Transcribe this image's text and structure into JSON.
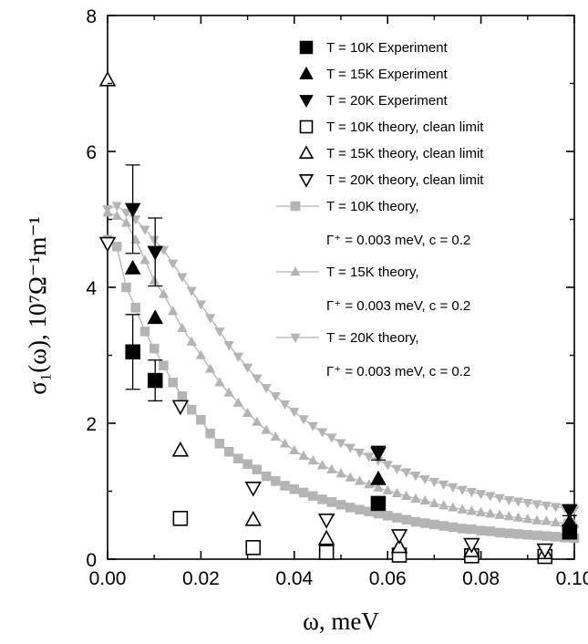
{
  "chart_data": {
    "type": "scatter",
    "xlabel": "ω, meV",
    "ylabel": "σ₁(ω), 10⁷Ω⁻¹m⁻¹",
    "xlim": [
      0.0,
      0.1
    ],
    "ylim": [
      0,
      8
    ],
    "x_ticks": [
      "0.00",
      "0.02",
      "0.04",
      "0.06",
      "0.08",
      "0.10"
    ],
    "y_ticks": [
      "0",
      "2",
      "4",
      "6",
      "8"
    ],
    "grid": false,
    "legend_position": "top-right",
    "series": [
      {
        "name": "T = 10K Experiment",
        "marker": "filled-square",
        "color": "#000000",
        "points": [
          [
            0.0054,
            3.05
          ],
          [
            0.0102,
            2.63
          ],
          [
            0.058,
            0.82
          ],
          [
            0.099,
            0.4
          ]
        ],
        "error": [
          0.55,
          0.3,
          0.06,
          0.05
        ]
      },
      {
        "name": "T = 15K Experiment",
        "marker": "filled-triangle-up",
        "color": "#000000",
        "points": [
          [
            0.0054,
            4.28
          ],
          [
            0.0102,
            3.55
          ],
          [
            0.058,
            1.18
          ],
          [
            0.099,
            0.55
          ]
        ],
        "error": [
          0.0,
          0.0,
          0.0,
          0.0
        ]
      },
      {
        "name": "T = 20K Experiment",
        "marker": "filled-triangle-down",
        "color": "#000000",
        "points": [
          [
            0.0054,
            5.15
          ],
          [
            0.0102,
            4.52
          ],
          [
            0.058,
            1.56
          ],
          [
            0.099,
            0.72
          ]
        ],
        "error": [
          0.65,
          0.5,
          0.1,
          0.08
        ]
      },
      {
        "name": "T = 10K theory, clean limit",
        "marker": "open-square",
        "color": "#000000",
        "points": [
          [
            0.0156,
            0.6
          ],
          [
            0.0312,
            0.17
          ],
          [
            0.0469,
            0.1
          ],
          [
            0.0625,
            0.06
          ],
          [
            0.078,
            0.05
          ],
          [
            0.0937,
            0.04
          ]
        ]
      },
      {
        "name": "T = 15K theory, clean limit",
        "marker": "open-triangle-up",
        "color": "#000000",
        "points": [
          [
            0.0,
            7.05
          ],
          [
            0.0156,
            1.6
          ],
          [
            0.0312,
            0.58
          ],
          [
            0.0469,
            0.3
          ],
          [
            0.0625,
            0.18
          ],
          [
            0.078,
            0.12
          ],
          [
            0.0937,
            0.09
          ]
        ]
      },
      {
        "name": "T = 20K theory, clean limit",
        "marker": "open-triangle-down",
        "color": "#000000",
        "points": [
          [
            0.0,
            4.65
          ],
          [
            0.0156,
            2.25
          ],
          [
            0.0312,
            1.05
          ],
          [
            0.0469,
            0.58
          ],
          [
            0.0625,
            0.35
          ],
          [
            0.078,
            0.22
          ],
          [
            0.0937,
            0.14
          ]
        ]
      },
      {
        "name": "T = 10K theory,",
        "name_line2": "Γ⁺ = 0.003 meV, c = 0.2",
        "marker": "filled-square",
        "line": true,
        "color": "#b4b4b4",
        "points": [
          [
            0.0,
            4.7
          ],
          [
            0.002,
            4.6
          ],
          [
            0.004,
            4.0
          ],
          [
            0.006,
            3.7
          ],
          [
            0.008,
            3.35
          ],
          [
            0.01,
            3.1
          ],
          [
            0.012,
            2.85
          ],
          [
            0.014,
            2.6
          ],
          [
            0.016,
            2.4
          ],
          [
            0.018,
            2.2
          ],
          [
            0.02,
            2.05
          ],
          [
            0.022,
            1.85
          ],
          [
            0.024,
            1.7
          ],
          [
            0.026,
            1.58
          ],
          [
            0.028,
            1.48
          ],
          [
            0.03,
            1.4
          ],
          [
            0.032,
            1.32
          ],
          [
            0.034,
            1.22
          ],
          [
            0.036,
            1.15
          ],
          [
            0.038,
            1.08
          ],
          [
            0.04,
            1.03
          ],
          [
            0.042,
            0.98
          ],
          [
            0.044,
            0.93
          ],
          [
            0.046,
            0.88
          ],
          [
            0.048,
            0.84
          ],
          [
            0.05,
            0.8
          ],
          [
            0.052,
            0.76
          ],
          [
            0.054,
            0.73
          ],
          [
            0.056,
            0.7
          ],
          [
            0.058,
            0.67
          ],
          [
            0.06,
            0.64
          ],
          [
            0.062,
            0.61
          ],
          [
            0.064,
            0.58
          ],
          [
            0.066,
            0.55
          ],
          [
            0.068,
            0.53
          ],
          [
            0.07,
            0.51
          ],
          [
            0.072,
            0.49
          ],
          [
            0.074,
            0.47
          ],
          [
            0.076,
            0.45
          ],
          [
            0.078,
            0.44
          ],
          [
            0.08,
            0.42
          ],
          [
            0.082,
            0.41
          ],
          [
            0.084,
            0.39
          ],
          [
            0.086,
            0.38
          ],
          [
            0.088,
            0.37
          ],
          [
            0.09,
            0.36
          ],
          [
            0.092,
            0.35
          ],
          [
            0.094,
            0.34
          ],
          [
            0.096,
            0.33
          ],
          [
            0.098,
            0.32
          ],
          [
            0.1,
            0.31
          ]
        ]
      },
      {
        "name": "T = 15K theory,",
        "name_line2": "Γ⁺ = 0.003 meV, c = 0.2",
        "marker": "filled-triangle-up",
        "line": true,
        "color": "#b4b4b4",
        "points": [
          [
            0.0,
            5.1
          ],
          [
            0.002,
            5.05
          ],
          [
            0.004,
            4.95
          ],
          [
            0.006,
            4.7
          ],
          [
            0.008,
            4.4
          ],
          [
            0.01,
            4.1
          ],
          [
            0.012,
            3.9
          ],
          [
            0.014,
            3.65
          ],
          [
            0.016,
            3.4
          ],
          [
            0.018,
            3.2
          ],
          [
            0.02,
            3.0
          ],
          [
            0.022,
            2.8
          ],
          [
            0.024,
            2.6
          ],
          [
            0.026,
            2.45
          ],
          [
            0.028,
            2.3
          ],
          [
            0.03,
            2.15
          ],
          [
            0.032,
            2.02
          ],
          [
            0.034,
            1.9
          ],
          [
            0.036,
            1.8
          ],
          [
            0.038,
            1.7
          ],
          [
            0.04,
            1.6
          ],
          [
            0.042,
            1.52
          ],
          [
            0.044,
            1.45
          ],
          [
            0.046,
            1.38
          ],
          [
            0.048,
            1.32
          ],
          [
            0.05,
            1.26
          ],
          [
            0.052,
            1.2
          ],
          [
            0.054,
            1.15
          ],
          [
            0.056,
            1.1
          ],
          [
            0.058,
            1.05
          ],
          [
            0.06,
            1.01
          ],
          [
            0.062,
            0.97
          ],
          [
            0.064,
            0.93
          ],
          [
            0.066,
            0.89
          ],
          [
            0.068,
            0.86
          ],
          [
            0.07,
            0.82
          ],
          [
            0.072,
            0.79
          ],
          [
            0.074,
            0.76
          ],
          [
            0.076,
            0.73
          ],
          [
            0.078,
            0.71
          ],
          [
            0.08,
            0.69
          ],
          [
            0.082,
            0.67
          ],
          [
            0.084,
            0.65
          ],
          [
            0.086,
            0.63
          ],
          [
            0.088,
            0.61
          ],
          [
            0.09,
            0.59
          ],
          [
            0.092,
            0.57
          ],
          [
            0.094,
            0.56
          ],
          [
            0.096,
            0.54
          ],
          [
            0.098,
            0.53
          ],
          [
            0.1,
            0.52
          ]
        ]
      },
      {
        "name": "T = 20K theory,",
        "name_line2": "Γ⁺ = 0.003 meV, c = 0.2",
        "marker": "filled-triangle-down",
        "line": true,
        "color": "#b4b4b4",
        "points": [
          [
            0.0,
            5.15
          ],
          [
            0.002,
            5.2
          ],
          [
            0.004,
            5.1
          ],
          [
            0.006,
            5.0
          ],
          [
            0.008,
            4.85
          ],
          [
            0.01,
            4.7
          ],
          [
            0.012,
            4.55
          ],
          [
            0.014,
            4.35
          ],
          [
            0.016,
            4.15
          ],
          [
            0.018,
            3.95
          ],
          [
            0.02,
            3.75
          ],
          [
            0.022,
            3.55
          ],
          [
            0.024,
            3.35
          ],
          [
            0.026,
            3.15
          ],
          [
            0.028,
            2.98
          ],
          [
            0.03,
            2.82
          ],
          [
            0.032,
            2.66
          ],
          [
            0.034,
            2.52
          ],
          [
            0.036,
            2.4
          ],
          [
            0.038,
            2.28
          ],
          [
            0.04,
            2.17
          ],
          [
            0.042,
            2.06
          ],
          [
            0.044,
            1.96
          ],
          [
            0.046,
            1.87
          ],
          [
            0.048,
            1.79
          ],
          [
            0.05,
            1.71
          ],
          [
            0.052,
            1.64
          ],
          [
            0.054,
            1.57
          ],
          [
            0.056,
            1.51
          ],
          [
            0.058,
            1.45
          ],
          [
            0.06,
            1.39
          ],
          [
            0.062,
            1.33
          ],
          [
            0.064,
            1.28
          ],
          [
            0.066,
            1.23
          ],
          [
            0.068,
            1.18
          ],
          [
            0.07,
            1.14
          ],
          [
            0.072,
            1.1
          ],
          [
            0.074,
            1.06
          ],
          [
            0.076,
            1.02
          ],
          [
            0.078,
            0.99
          ],
          [
            0.08,
            0.96
          ],
          [
            0.082,
            0.93
          ],
          [
            0.084,
            0.9
          ],
          [
            0.086,
            0.87
          ],
          [
            0.088,
            0.85
          ],
          [
            0.09,
            0.83
          ],
          [
            0.092,
            0.81
          ],
          [
            0.094,
            0.79
          ],
          [
            0.096,
            0.77
          ],
          [
            0.098,
            0.75
          ],
          [
            0.1,
            0.73
          ]
        ]
      }
    ]
  }
}
